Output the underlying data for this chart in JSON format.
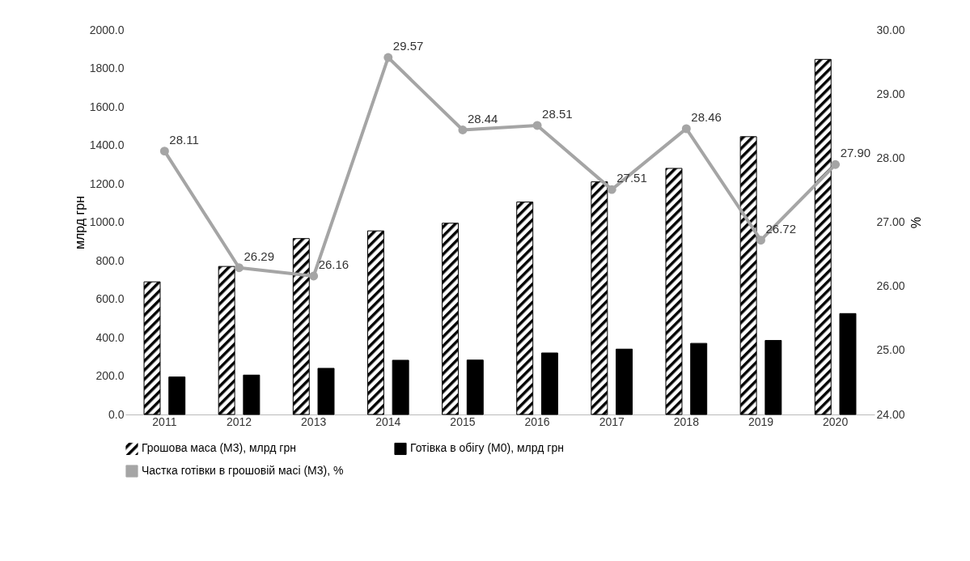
{
  "chart_data": {
    "type": "bar",
    "categories": [
      "2011",
      "2012",
      "2013",
      "2014",
      "2015",
      "2016",
      "2017",
      "2018",
      "2019",
      "2020"
    ],
    "ylabel": "млрд грн",
    "y2label": "%",
    "ylim": [
      0,
      2000
    ],
    "yticks": [
      {
        "value": 0,
        "label": "0.0"
      },
      {
        "value": 200,
        "label": "200.0"
      },
      {
        "value": 400,
        "label": "400.0"
      },
      {
        "value": 600,
        "label": "600.0"
      },
      {
        "value": 800,
        "label": "800.0"
      },
      {
        "value": 1000,
        "label": "1000.0"
      },
      {
        "value": 1200,
        "label": "1200.0"
      },
      {
        "value": 1400,
        "label": "1400.0"
      },
      {
        "value": 1600,
        "label": "1600.0"
      },
      {
        "value": 1800,
        "label": "1800.0"
      },
      {
        "value": 2000,
        "label": "2000.0"
      }
    ],
    "y2lim": [
      24,
      30
    ],
    "y2ticks": [
      {
        "value": 24,
        "label": "24.00"
      },
      {
        "value": 25,
        "label": "25.00"
      },
      {
        "value": 26,
        "label": "26.00"
      },
      {
        "value": 27,
        "label": "27.00"
      },
      {
        "value": 28,
        "label": "28.00"
      },
      {
        "value": 29,
        "label": "29.00"
      },
      {
        "value": 30,
        "label": "30.00"
      }
    ],
    "grid": false,
    "legend": "bottom",
    "series": [
      {
        "name": "Грошова маса (М3), млрд грн",
        "color": "#000000",
        "values": [
          690,
          770,
          915,
          955,
          995,
          1105,
          1210,
          1280,
          1445,
          1847
        ]
      },
      {
        "name": "Готівка в обігу (М0), млрд грн",
        "color": "#000000",
        "values": [
          195,
          205,
          240,
          282,
          283,
          320,
          340,
          370,
          385,
          525
        ]
      },
      {
        "name": "Частка готівки в грошовій масі (М3), %",
        "type": "line",
        "axis": "y2",
        "color": "#a5a5a5",
        "marker": "circle",
        "values": [
          28.11,
          26.29,
          26.16,
          29.57,
          28.44,
          28.51,
          27.51,
          28.46,
          26.72,
          27.9
        ],
        "value_labels": [
          "28.11",
          "26.29",
          "26.16",
          "29.57",
          "28.44",
          "28.51",
          "27.51",
          "28.46",
          "26.72",
          "27.90"
        ]
      }
    ]
  }
}
